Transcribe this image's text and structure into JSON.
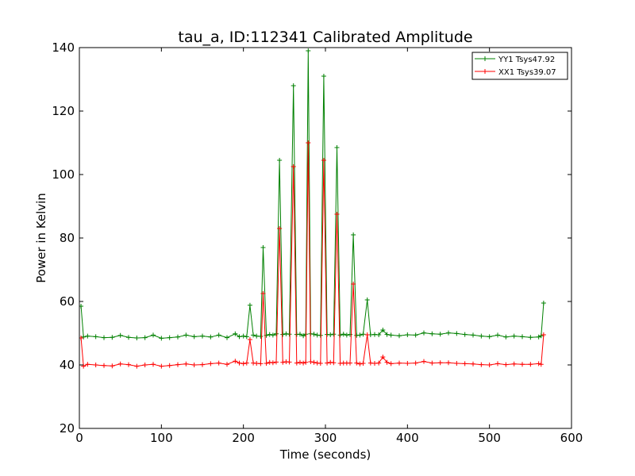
{
  "chart_data": {
    "type": "line",
    "title": "tau_a, ID:112341 Calibrated Amplitude",
    "xlabel": "Time (seconds)",
    "ylabel": "Power in Kelvin",
    "xlim": [
      0,
      600
    ],
    "ylim": [
      20,
      140
    ],
    "xticks": [
      0,
      100,
      200,
      300,
      400,
      500,
      600
    ],
    "yticks": [
      20,
      40,
      60,
      80,
      100,
      120,
      140
    ],
    "grid": false,
    "legend_position": "top-right",
    "marker": "plus",
    "series": [
      {
        "name": "YY1 Tsys47.92",
        "color": "#008000",
        "x": [
          2,
          5,
          10,
          20,
          30,
          40,
          50,
          60,
          70,
          80,
          90,
          100,
          110,
          120,
          130,
          140,
          150,
          160,
          170,
          180,
          190,
          195,
          200,
          204,
          208,
          212,
          216,
          221,
          224,
          228,
          232,
          236,
          240,
          244,
          248,
          252,
          256,
          261,
          265,
          269,
          273,
          276,
          279,
          282,
          286,
          290,
          294,
          298,
          302,
          306,
          310,
          314,
          318,
          322,
          326,
          330,
          334,
          338,
          342,
          346,
          351,
          355,
          360,
          365,
          370,
          375,
          380,
          390,
          400,
          410,
          420,
          430,
          440,
          450,
          460,
          470,
          480,
          490,
          500,
          510,
          520,
          530,
          540,
          550,
          560,
          563,
          566
        ],
        "y": [
          58.5,
          48.8,
          49.1,
          48.9,
          48.6,
          48.7,
          49.3,
          48.7,
          48.5,
          48.6,
          49.4,
          48.4,
          48.6,
          48.8,
          49.4,
          48.9,
          49.1,
          48.8,
          49.4,
          48.6,
          49.8,
          48.9,
          49.1,
          48.9,
          58.8,
          49.4,
          49.1,
          49.0,
          77.0,
          49.3,
          49.6,
          49.4,
          49.8,
          104.5,
          49.6,
          49.8,
          49.7,
          128.0,
          49.6,
          49.7,
          49.2,
          49.7,
          139.0,
          49.8,
          49.7,
          49.4,
          49.3,
          131.0,
          49.6,
          49.5,
          49.7,
          108.5,
          49.4,
          49.7,
          49.4,
          49.6,
          81.0,
          49.3,
          49.4,
          49.7,
          60.5,
          49.5,
          49.6,
          49.5,
          51.0,
          49.6,
          49.4,
          49.2,
          49.5,
          49.4,
          50.1,
          49.8,
          49.7,
          50.1,
          49.9,
          49.6,
          49.4,
          49.1,
          48.9,
          49.4,
          48.8,
          49.1,
          48.9,
          48.7,
          48.8,
          49.2,
          59.5
        ]
      },
      {
        "name": "XX1 Tsys39.07",
        "color": "#ff0000",
        "x": [
          2,
          5,
          10,
          20,
          30,
          40,
          50,
          60,
          70,
          80,
          90,
          100,
          110,
          120,
          130,
          140,
          150,
          160,
          170,
          180,
          190,
          195,
          200,
          204,
          208,
          212,
          216,
          221,
          224,
          228,
          232,
          236,
          240,
          244,
          248,
          252,
          256,
          261,
          265,
          269,
          273,
          276,
          279,
          282,
          286,
          290,
          294,
          298,
          302,
          306,
          310,
          314,
          318,
          322,
          326,
          330,
          334,
          338,
          342,
          346,
          351,
          355,
          360,
          365,
          370,
          375,
          380,
          390,
          400,
          410,
          420,
          430,
          440,
          450,
          460,
          470,
          480,
          490,
          500,
          510,
          520,
          530,
          540,
          550,
          560,
          563,
          566
        ],
        "y": [
          48.5,
          39.6,
          40.2,
          40.0,
          39.8,
          39.7,
          40.3,
          40.1,
          39.6,
          40.0,
          40.2,
          39.6,
          39.8,
          40.1,
          40.3,
          40.0,
          40.1,
          40.4,
          40.6,
          40.2,
          41.2,
          40.6,
          40.4,
          40.6,
          48.0,
          40.6,
          40.5,
          40.4,
          62.5,
          40.5,
          40.8,
          40.7,
          40.9,
          83.0,
          40.8,
          41.0,
          40.9,
          102.5,
          40.6,
          40.8,
          40.6,
          40.8,
          110.0,
          41.0,
          40.8,
          40.6,
          40.5,
          104.5,
          40.6,
          40.8,
          40.7,
          87.5,
          40.5,
          40.6,
          40.6,
          40.6,
          65.5,
          40.6,
          40.3,
          40.5,
          49.5,
          40.6,
          40.5,
          40.6,
          42.5,
          40.8,
          40.4,
          40.6,
          40.5,
          40.6,
          41.1,
          40.6,
          40.7,
          40.7,
          40.5,
          40.4,
          40.3,
          40.1,
          40.0,
          40.4,
          40.1,
          40.3,
          40.2,
          40.2,
          40.4,
          40.2,
          49.5
        ]
      }
    ]
  }
}
